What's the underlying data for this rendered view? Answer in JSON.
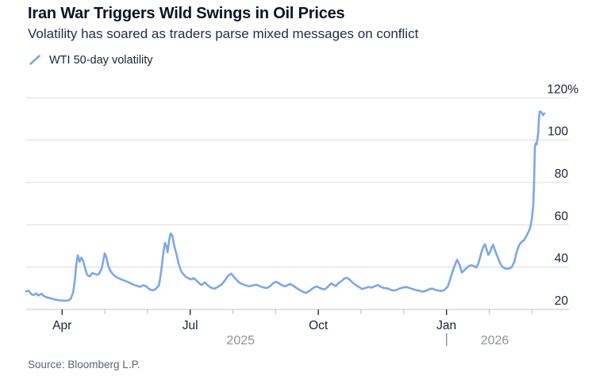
{
  "header": {
    "title": "Iran War Triggers Wild Swings in Oil Prices",
    "subtitle": "Volatility has soared as traders parse mixed messages on conflict",
    "legend": {
      "icon": "line-swatch-icon",
      "label": "WTI 50-day volatility"
    }
  },
  "footer": {
    "source": "Source: Bloomberg L.P."
  },
  "colors": {
    "line": "#7DA7E8",
    "title": "#0D1322",
    "subtitle": "#252E47",
    "axis_label": "#1B2436",
    "muted_year": "#8E929B",
    "source_text": "#5F6470",
    "gridline": "#D9DBDE",
    "axis_line": "#C4C7CC",
    "tick_major": "#252E47",
    "tick_minor": "#B9BCC2",
    "background": "#FFFFFF"
  },
  "chart_data": {
    "type": "line",
    "series_name": "WTI 50-day volatility",
    "x_unit": "month index: 1 = Apr 2025, 4 = Jul 2025, 7 = Oct 2025, 10 = Jan 2026",
    "xlim": [
      0.16,
      12.87
    ],
    "ylim": [
      20,
      120
    ],
    "grid": "horizontal",
    "legend_position": "top-left",
    "y_ticks": [
      20,
      40,
      60,
      80,
      100,
      120
    ],
    "y_top_tick_suffix": "%",
    "x_major_ticks": [
      {
        "m": 1,
        "label": "Apr"
      },
      {
        "m": 4,
        "label": "Jul"
      },
      {
        "m": 7,
        "label": "Oct"
      },
      {
        "m": 10,
        "label": "Jan"
      }
    ],
    "x_minor_ticks": [
      2,
      3,
      5,
      6,
      8,
      9,
      11,
      12
    ],
    "year_labels": [
      {
        "label": "2025",
        "m": 5.18
      },
      {
        "label": "2026",
        "m": 11.13
      }
    ],
    "year_divider_m": 10,
    "x": [
      0.16,
      0.22,
      0.28,
      0.33,
      0.39,
      0.44,
      0.52,
      0.57,
      0.63,
      0.7,
      0.78,
      0.85,
      0.93,
      1.0,
      1.07,
      1.15,
      1.2,
      1.26,
      1.3,
      1.33,
      1.37,
      1.41,
      1.45,
      1.48,
      1.52,
      1.56,
      1.59,
      1.65,
      1.71,
      1.76,
      1.82,
      1.87,
      1.93,
      1.97,
      2.0,
      2.04,
      2.08,
      2.13,
      2.19,
      2.26,
      2.34,
      2.41,
      2.49,
      2.58,
      2.67,
      2.75,
      2.82,
      2.9,
      2.97,
      3.04,
      3.12,
      3.19,
      3.27,
      3.32,
      3.38,
      3.41,
      3.45,
      3.47,
      3.51,
      3.54,
      3.58,
      3.62,
      3.68,
      3.73,
      3.79,
      3.84,
      3.9,
      3.97,
      4.03,
      4.08,
      4.14,
      4.21,
      4.27,
      4.34,
      4.42,
      4.49,
      4.57,
      4.64,
      4.72,
      4.81,
      4.88,
      4.96,
      5.03,
      5.11,
      5.18,
      5.27,
      5.37,
      5.46,
      5.55,
      5.64,
      5.72,
      5.79,
      5.87,
      5.94,
      6.02,
      6.09,
      6.16,
      6.22,
      6.29,
      6.35,
      6.42,
      6.48,
      6.54,
      6.61,
      6.67,
      6.72,
      6.8,
      6.87,
      6.96,
      7.04,
      7.09,
      7.15,
      7.22,
      7.3,
      7.35,
      7.41,
      7.46,
      7.54,
      7.61,
      7.67,
      7.73,
      7.8,
      7.87,
      7.95,
      8.02,
      8.1,
      8.17,
      8.25,
      8.32,
      8.39,
      8.47,
      8.54,
      8.62,
      8.69,
      8.77,
      8.84,
      8.91,
      8.99,
      9.06,
      9.14,
      9.21,
      9.29,
      9.36,
      9.43,
      9.51,
      9.58,
      9.66,
      9.73,
      9.81,
      9.88,
      9.95,
      10.03,
      10.08,
      10.14,
      10.2,
      10.25,
      10.31,
      10.36,
      10.42,
      10.47,
      10.53,
      10.59,
      10.64,
      10.7,
      10.75,
      10.81,
      10.86,
      10.9,
      10.94,
      10.98,
      11.01,
      11.05,
      11.09,
      11.14,
      11.2,
      11.25,
      11.31,
      11.37,
      11.42,
      11.48,
      11.53,
      11.59,
      11.64,
      11.7,
      11.76,
      11.81,
      11.87,
      11.92,
      11.96,
      12.0,
      12.03,
      12.05,
      12.07,
      12.09,
      12.11,
      12.13,
      12.15,
      12.16,
      12.18,
      12.22,
      12.26,
      12.29
    ],
    "y": [
      28.5,
      28.8,
      27.2,
      26.8,
      27.6,
      26.6,
      27.4,
      26.4,
      25.8,
      25.4,
      25.0,
      24.6,
      24.3,
      24.2,
      24.1,
      24.3,
      25.0,
      28.0,
      34.0,
      41.0,
      45.5,
      42.5,
      44.5,
      43.5,
      41.0,
      38.0,
      36.3,
      35.6,
      37.3,
      36.8,
      36.4,
      36.9,
      39.5,
      43.5,
      46.5,
      44.5,
      40.5,
      38.3,
      36.6,
      35.4,
      34.6,
      34.0,
      33.4,
      32.6,
      31.7,
      31.2,
      30.7,
      31.4,
      30.9,
      29.6,
      29.0,
      29.6,
      31.5,
      38.0,
      48.0,
      51.4,
      49.5,
      47.0,
      53.0,
      55.9,
      55.0,
      50.5,
      46.0,
      41.5,
      38.0,
      36.6,
      35.4,
      34.6,
      34.2,
      34.8,
      33.8,
      32.4,
      31.5,
      32.8,
      31.2,
      30.2,
      29.8,
      30.6,
      31.6,
      33.6,
      35.8,
      36.9,
      35.2,
      33.4,
      32.3,
      31.6,
      30.9,
      31.3,
      31.7,
      30.9,
      30.4,
      30.1,
      31.0,
      32.4,
      33.1,
      32.2,
      31.3,
      30.9,
      31.6,
      32.0,
      31.1,
      30.2,
      29.5,
      28.6,
      28.1,
      27.8,
      28.9,
      30.0,
      30.9,
      30.1,
      29.7,
      29.5,
      30.6,
      32.3,
      31.7,
      31.0,
      32.3,
      33.4,
      34.6,
      35.0,
      34.1,
      32.7,
      31.6,
      30.6,
      29.7,
      30.1,
      30.6,
      30.3,
      31.0,
      31.5,
      30.6,
      30.1,
      29.9,
      29.3,
      28.9,
      29.3,
      29.9,
      30.4,
      30.6,
      30.1,
      29.6,
      29.1,
      28.9,
      28.4,
      28.7,
      29.4,
      29.9,
      29.3,
      28.9,
      28.7,
      29.2,
      30.8,
      33.8,
      37.8,
      41.2,
      43.5,
      40.8,
      37.4,
      38.6,
      39.6,
      40.6,
      40.9,
      40.5,
      39.8,
      42.0,
      46.5,
      49.5,
      50.8,
      48.2,
      45.8,
      46.8,
      48.8,
      50.6,
      47.6,
      44.6,
      42.0,
      40.1,
      39.4,
      39.2,
      39.4,
      40.1,
      42.6,
      47.0,
      50.4,
      52.0,
      52.6,
      54.6,
      56.6,
      58.6,
      63.0,
      69.0,
      79.0,
      97.0,
      98.5,
      98.0,
      100.5,
      104.0,
      109.0,
      113.5,
      113.2,
      111.8,
      112.6
    ]
  }
}
